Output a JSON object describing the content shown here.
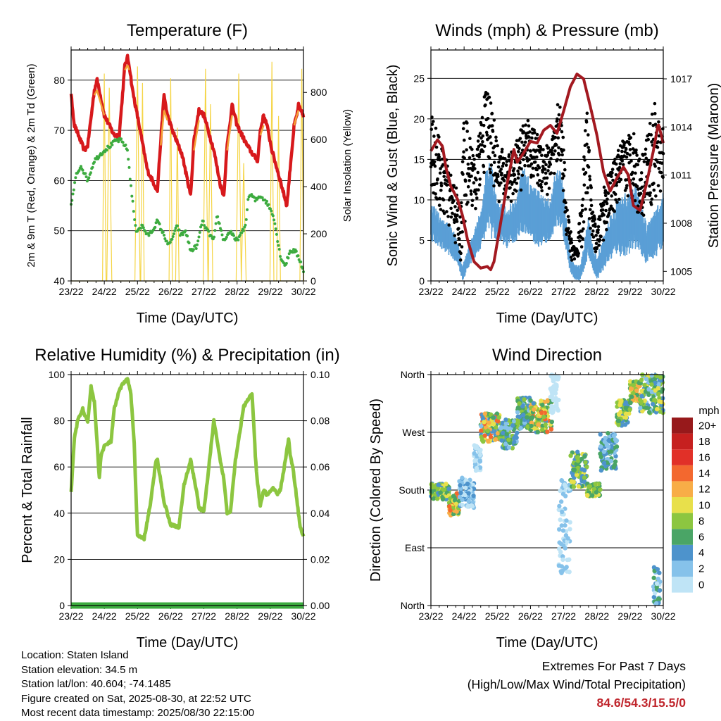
{
  "colors": {
    "temp_red": "#d7191c",
    "temp_orange": "#f4a236",
    "dewpoint_green": "#3cab3f",
    "solar_yellow": "#f5d547",
    "wind_blue": "#5a9fd6",
    "gust_black": "#000000",
    "pressure_maroon": "#a31920",
    "rh_green": "#8cc640",
    "precip_green": "#3cab3f",
    "extremes_red": "#c0262d"
  },
  "info": {
    "location": "Location: Staten Island",
    "elevation": "Station elevation: 34.5 m",
    "latlon": "Station lat/lon: 40.604; -74.1485",
    "created": "Figure created on Sat, 2025-08-30, at 22:52 UTC",
    "recent": "Most recent data timestamp: 2025/08/30 22:15:00"
  },
  "extremes": {
    "title": "Extremes For Past 7 Days",
    "subtitle": "(High/Low/Max Wind/Total Precipitation)",
    "values": "84.6/54.3/15.5/0"
  },
  "chart_data": [
    {
      "id": "temperature",
      "type": "line",
      "title": "Temperature (F)",
      "xlabel": "Time (Day/UTC)",
      "ylabel": "2m & 9m T (Red, Orange) & 2m Td (Green)",
      "y2label": "Solar Insolation (Yellow)",
      "x_ticks": [
        "23/22",
        "24/22",
        "25/22",
        "26/22",
        "27/22",
        "28/22",
        "29/22",
        "30/22"
      ],
      "xlim": [
        0,
        7
      ],
      "ylim": [
        40,
        86
      ],
      "y_ticks": [
        40,
        50,
        60,
        70,
        80
      ],
      "y2lim": [
        0,
        980
      ],
      "y2_ticks": [
        0,
        200,
        400,
        600,
        800
      ],
      "grid": true,
      "series": [
        {
          "id": "temp",
          "style": "thick-line",
          "x": [
            0,
            0.1,
            0.4,
            0.5,
            0.7,
            0.78,
            0.82,
            1.0,
            1.3,
            1.45,
            1.62,
            1.7,
            1.75,
            1.85,
            2.05,
            2.3,
            2.6,
            2.7,
            2.8,
            2.9,
            3.05,
            3.35,
            3.6,
            3.7,
            3.85,
            4.0,
            4.3,
            4.5,
            4.6,
            4.7,
            4.85,
            5.0,
            5.3,
            5.5,
            5.62,
            5.7,
            5.8,
            5.9,
            6.05,
            6.3,
            6.5,
            6.62,
            6.72,
            6.8,
            6.85,
            6.9,
            7.0
          ],
          "y": [
            77,
            71,
            66,
            67,
            78,
            80,
            79,
            73,
            69,
            69,
            83,
            84.5,
            83,
            78,
            71,
            62,
            58,
            68,
            77,
            73,
            70,
            65,
            57,
            68,
            74,
            73,
            66,
            59,
            57,
            67,
            75,
            71,
            67,
            65,
            64,
            70,
            73,
            71,
            66,
            60,
            55,
            64,
            71,
            73,
            75,
            74,
            73
          ]
        },
        {
          "id": "temp9m",
          "style": "thin-line",
          "x": [
            0.7,
            0.78,
            0.82,
            1.0,
            1.62,
            1.7,
            1.75,
            2.7,
            2.8,
            2.9,
            3.7,
            3.85,
            4.7,
            4.85,
            5.7,
            5.8,
            6.72,
            6.8,
            6.85
          ],
          "y": [
            77,
            78,
            77,
            73,
            82,
            83,
            82,
            67,
            74,
            72,
            66,
            72,
            66,
            73,
            69,
            71,
            71,
            73,
            74
          ]
        },
        {
          "id": "dewpoint",
          "style": "dots",
          "x": [
            0,
            0.15,
            0.3,
            0.5,
            0.7,
            1.0,
            1.2,
            1.35,
            1.5,
            1.62,
            1.7,
            1.8,
            1.95,
            2.15,
            2.3,
            2.45,
            2.6,
            2.8,
            2.95,
            3.2,
            3.3,
            3.45,
            3.6,
            3.8,
            3.95,
            4.1,
            4.3,
            4.4,
            4.6,
            4.8,
            4.95,
            5.1,
            5.25,
            5.35,
            5.45,
            5.55,
            5.7,
            5.85,
            5.95,
            6.1,
            6.3,
            6.45,
            6.6,
            6.75,
            6.9,
            7.0
          ],
          "y": [
            55,
            61,
            63,
            60,
            64,
            66,
            67,
            68,
            68,
            67,
            66,
            59,
            50,
            51,
            49,
            50,
            52,
            49,
            47,
            51,
            49,
            50,
            46,
            47,
            52,
            50,
            48,
            53,
            48,
            50,
            48,
            49,
            51,
            57,
            57,
            56,
            57,
            56,
            55,
            53,
            45,
            43,
            46,
            46,
            44,
            42
          ]
        },
        {
          "id": "solar",
          "style": "thin-line",
          "peaks": [
            {
              "day": 1.0,
              "value": 880
            },
            {
              "day": 1.15,
              "value": 820
            },
            {
              "day": 2.0,
              "value": 910
            },
            {
              "day": 2.15,
              "value": 840
            },
            {
              "day": 3.0,
              "value": 860
            },
            {
              "day": 3.2,
              "value": 650
            },
            {
              "day": 4.05,
              "value": 900
            },
            {
              "day": 4.2,
              "value": 750
            },
            {
              "day": 5.05,
              "value": 880
            },
            {
              "day": 5.2,
              "value": 500
            },
            {
              "day": 6.05,
              "value": 930
            },
            {
              "day": 6.25,
              "value": 700
            },
            {
              "day": 6.95,
              "value": 900
            }
          ]
        }
      ]
    },
    {
      "id": "winds",
      "type": "line",
      "title": "Winds (mph) & Pressure (mb)",
      "xlabel": "Time (Day/UTC)",
      "ylabel": "Sonic Wind & Gust (Blue, Black)",
      "y2label": "Station Pressure (Maroon)",
      "x_ticks": [
        "23/22",
        "24/22",
        "25/22",
        "26/22",
        "27/22",
        "28/22",
        "29/22",
        "30/22"
      ],
      "xlim": [
        0,
        7
      ],
      "ylim": [
        0,
        28.5
      ],
      "y_ticks": [
        0,
        5,
        10,
        15,
        20,
        25
      ],
      "y2lim": [
        1004.4,
        1018.8
      ],
      "y2_ticks": [
        1005,
        1008,
        1011,
        1014,
        1017
      ],
      "grid": true,
      "series": [
        {
          "id": "wind",
          "style": "thick-band",
          "x": [
            0,
            0.3,
            0.6,
            0.8,
            0.95,
            1.2,
            1.5,
            1.7,
            1.85,
            2.0,
            2.3,
            2.6,
            2.8,
            3.0,
            3.3,
            3.6,
            3.8,
            3.95,
            4.2,
            4.35,
            4.5,
            4.75,
            4.9,
            5.0,
            5.3,
            5.6,
            5.9,
            6.2,
            6.5,
            6.8,
            7.0
          ],
          "low": [
            5,
            4,
            3,
            2,
            0,
            2,
            4,
            6,
            5,
            5,
            4,
            5,
            6,
            5,
            4,
            5,
            7,
            6,
            1,
            0,
            0,
            3,
            1,
            0,
            2,
            3,
            3,
            4,
            2,
            3,
            4
          ],
          "high": [
            10,
            8,
            7,
            5,
            2,
            5,
            9,
            15,
            14,
            10,
            9,
            11,
            15,
            12,
            11,
            10,
            15,
            13,
            3,
            2,
            2,
            8,
            4,
            3,
            7,
            10,
            11,
            12,
            7,
            9,
            11
          ]
        },
        {
          "id": "gust",
          "style": "dots",
          "x": [
            0,
            0.3,
            0.55,
            0.75,
            0.9,
            1.0,
            1.15,
            1.35,
            1.5,
            1.7,
            1.85,
            2.0,
            2.2,
            2.5,
            2.7,
            2.9,
            3.05,
            3.25,
            3.5,
            3.75,
            3.85,
            3.95,
            4.1,
            4.25,
            4.4,
            4.55,
            4.7,
            4.85,
            5.0,
            5.2,
            5.45,
            5.7,
            5.9,
            6.1,
            6.3,
            6.5,
            6.75,
            6.9,
            7.0
          ],
          "low": [
            10,
            8,
            6,
            4,
            2,
            6,
            10,
            8,
            12,
            14,
            12,
            10,
            9,
            10,
            11,
            14,
            12,
            11,
            10,
            11,
            15,
            13,
            4,
            2,
            3,
            3,
            9,
            5,
            3,
            5,
            8,
            9,
            10,
            10,
            7,
            9,
            9,
            10,
            12
          ],
          "high": [
            22,
            17,
            14,
            12,
            8,
            23,
            18,
            15,
            20,
            25,
            22,
            17,
            16,
            16,
            19,
            20,
            19,
            18,
            17,
            19,
            23,
            20,
            10,
            5,
            4,
            12,
            22,
            10,
            6,
            12,
            14,
            17,
            18,
            19,
            15,
            18,
            22,
            19,
            20
          ]
        },
        {
          "id": "pressure",
          "style": "thick-line",
          "x": [
            0,
            0.2,
            0.35,
            0.45,
            0.6,
            0.8,
            0.95,
            1.1,
            1.3,
            1.5,
            1.7,
            1.8,
            1.9,
            2.1,
            2.3,
            2.5,
            2.6,
            2.8,
            3.0,
            3.2,
            3.4,
            3.6,
            3.8,
            4.0,
            4.2,
            4.4,
            4.6,
            4.8,
            5.0,
            5.2,
            5.4,
            5.6,
            5.8,
            5.95,
            6.1,
            6.3,
            6.5,
            6.7,
            6.85,
            7.0
          ],
          "y": [
            1012.5,
            1013.2,
            1012.8,
            1011.5,
            1010.3,
            1009.5,
            1008.5,
            1007.0,
            1005.6,
            1005.2,
            1005.3,
            1005.1,
            1005.6,
            1008.0,
            1010.5,
            1012.6,
            1011.8,
            1012.4,
            1013.1,
            1013.0,
            1013.8,
            1014.1,
            1013.6,
            1015.0,
            1016.5,
            1017.3,
            1017.0,
            1015.3,
            1013.5,
            1011.2,
            1010.0,
            1010.8,
            1011.5,
            1011.0,
            1009.1,
            1008.8,
            1010.5,
            1012.5,
            1014.2,
            1013.0
          ]
        }
      ]
    },
    {
      "id": "humidity",
      "type": "line",
      "title": "Relative Humidity (%) & Precipitation (in)",
      "xlabel": "Time (Day/UTC)",
      "ylabel": "Percent & Total Rainfall",
      "x_ticks": [
        "23/22",
        "24/22",
        "25/22",
        "26/22",
        "27/22",
        "28/22",
        "29/22",
        "30/22"
      ],
      "xlim": [
        0,
        7
      ],
      "ylim": [
        0,
        100
      ],
      "y_ticks": [
        0,
        20,
        40,
        60,
        80,
        100
      ],
      "y2lim": [
        0,
        0.1
      ],
      "y2_ticks": [
        "0.00",
        "0.02",
        "0.04",
        "0.06",
        "0.08",
        "0.10"
      ],
      "grid": true,
      "series": [
        {
          "id": "rh",
          "style": "thick-line",
          "x": [
            0,
            0.1,
            0.2,
            0.35,
            0.5,
            0.6,
            0.7,
            0.8,
            0.85,
            0.9,
            1.0,
            1.2,
            1.3,
            1.45,
            1.6,
            1.7,
            1.8,
            1.9,
            2.0,
            2.2,
            2.4,
            2.55,
            2.6,
            2.8,
            3.0,
            3.25,
            3.4,
            3.6,
            3.8,
            3.85,
            4.0,
            4.15,
            4.3,
            4.5,
            4.6,
            4.7,
            4.8,
            4.95,
            5.2,
            5.45,
            5.55,
            5.6,
            5.7,
            5.8,
            5.9,
            6.1,
            6.2,
            6.3,
            6.4,
            6.55,
            6.6,
            6.7,
            6.9,
            7.0
          ],
          "y": [
            49,
            73,
            80,
            85,
            79,
            95,
            88,
            67,
            55,
            65,
            69,
            71,
            85,
            93,
            97,
            98,
            92,
            70,
            30,
            29,
            45,
            62,
            63,
            45,
            35,
            34,
            52,
            63,
            48,
            42,
            41,
            60,
            80,
            62,
            55,
            40,
            41,
            63,
            86,
            92,
            65,
            55,
            43,
            50,
            48,
            51,
            48,
            50,
            58,
            72,
            65,
            58,
            34,
            30
          ]
        },
        {
          "id": "precip",
          "style": "thick-line",
          "x": [
            0,
            7
          ],
          "y": [
            0,
            0
          ]
        }
      ]
    },
    {
      "id": "wind_direction",
      "type": "scatter",
      "title": "Wind Direction",
      "xlabel": "Time (Day/UTC)",
      "ylabel": "Direction (Colored By Speed)",
      "x_ticks": [
        "23/22",
        "24/22",
        "25/22",
        "26/22",
        "27/22",
        "28/22",
        "29/22",
        "30/22"
      ],
      "xlim": [
        0,
        7
      ],
      "y_ticks": [
        "North",
        "East",
        "South",
        "West",
        "North"
      ],
      "ylim": [
        0,
        360
      ],
      "grid": true,
      "colorbar": {
        "title": "mph",
        "labels": [
          "0",
          "2",
          "4",
          "6",
          "8",
          "10",
          "12",
          "14",
          "16",
          "18",
          "20+"
        ],
        "colors": [
          "#bfe4f6",
          "#86c2ea",
          "#4d93cc",
          "#4aa566",
          "#8cc640",
          "#e8e04b",
          "#f8ad47",
          "#f3682f",
          "#e13028",
          "#c6201f",
          "#97191b"
        ]
      },
      "clusters": [
        {
          "x0": 0,
          "x1": 0.55,
          "dmin": 165,
          "dmax": 190,
          "smin": 4,
          "smax": 12
        },
        {
          "x0": 0.55,
          "x1": 0.85,
          "dmin": 140,
          "dmax": 175,
          "smin": 6,
          "smax": 16
        },
        {
          "x0": 0.85,
          "x1": 1.3,
          "dmin": 150,
          "dmax": 200,
          "smin": 1,
          "smax": 6
        },
        {
          "x0": 1.3,
          "x1": 1.5,
          "dmin": 210,
          "dmax": 250,
          "smin": 0,
          "smax": 3
        },
        {
          "x0": 1.5,
          "x1": 2.1,
          "dmin": 255,
          "dmax": 300,
          "smin": 3,
          "smax": 16
        },
        {
          "x0": 2.1,
          "x1": 2.6,
          "dmin": 245,
          "dmax": 290,
          "smin": 2,
          "smax": 9
        },
        {
          "x0": 2.6,
          "x1": 3.0,
          "dmin": 275,
          "dmax": 325,
          "smin": 3,
          "smax": 10
        },
        {
          "x0": 3.0,
          "x1": 3.65,
          "dmin": 270,
          "dmax": 320,
          "smin": 5,
          "smax": 15
        },
        {
          "x0": 3.6,
          "x1": 3.85,
          "dmin": 300,
          "dmax": 360,
          "smin": 0,
          "smax": 2
        },
        {
          "x0": 3.85,
          "x1": 4.2,
          "dmin": 50,
          "dmax": 200,
          "smin": 0,
          "smax": 4
        },
        {
          "x0": 4.2,
          "x1": 4.7,
          "dmin": 185,
          "dmax": 240,
          "smin": 4,
          "smax": 11
        },
        {
          "x0": 4.7,
          "x1": 5.1,
          "dmin": 170,
          "dmax": 190,
          "smin": 6,
          "smax": 12
        },
        {
          "x0": 5.1,
          "x1": 5.6,
          "dmin": 210,
          "dmax": 270,
          "smin": 2,
          "smax": 8
        },
        {
          "x0": 5.6,
          "x1": 6.0,
          "dmin": 280,
          "dmax": 320,
          "smin": 4,
          "smax": 12
        },
        {
          "x0": 6.0,
          "x1": 6.3,
          "dmin": 315,
          "dmax": 350,
          "smin": 6,
          "smax": 14
        },
        {
          "x0": 6.3,
          "x1": 7.0,
          "dmin": 300,
          "dmax": 360,
          "smin": 3,
          "smax": 11
        },
        {
          "x0": 6.7,
          "x1": 6.9,
          "dmin": 0,
          "dmax": 60,
          "smin": 1,
          "smax": 9
        }
      ]
    }
  ]
}
